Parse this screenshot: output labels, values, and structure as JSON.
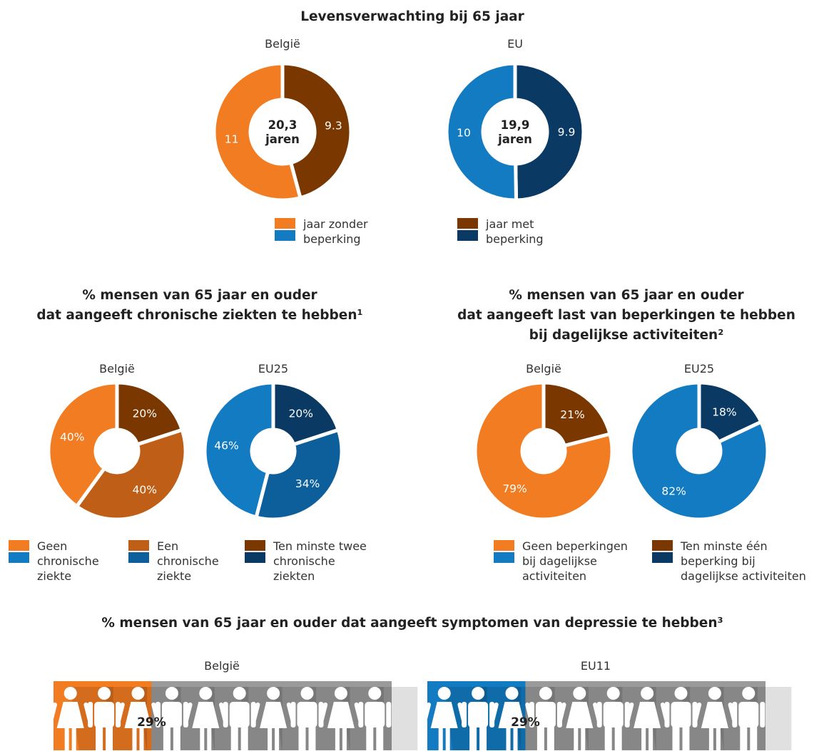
{
  "chart_data": [
    {
      "type": "pie",
      "title": "Levensverwachting bij 65 jaar",
      "charts": [
        {
          "subtitle": "België",
          "center": [
            "20,3",
            "jaren"
          ],
          "slices": [
            {
              "category": "jaar met beperking",
              "value": 9.3,
              "label": "9.3",
              "color": "#7a3800"
            },
            {
              "category": "jaar zonder beperking",
              "value": 11,
              "label": "11",
              "color": "#f27c21"
            }
          ]
        },
        {
          "subtitle": "EU",
          "center": [
            "19,9",
            "jaren"
          ],
          "slices": [
            {
              "category": "jaar met beperking",
              "value": 9.9,
              "label": "9.9",
              "color": "#0a3a63"
            },
            {
              "category": "jaar zonder beperking",
              "value": 10,
              "label": "10",
              "color": "#137bc1"
            }
          ]
        }
      ],
      "legend": [
        {
          "label": "jaar zonder beperking",
          "colors": [
            "#f27c21",
            "#137bc1"
          ]
        },
        {
          "label": "jaar met beperking",
          "colors": [
            "#7a3800",
            "#0a3a63"
          ]
        }
      ]
    },
    {
      "type": "pie",
      "title": "% mensen van 65 jaar en ouder dat aangeeft chronische ziekten te hebben¹",
      "charts": [
        {
          "subtitle": "België",
          "slices": [
            {
              "category": "Ten minste twee chronische ziekten",
              "value": 20,
              "label": "20%",
              "color": "#7a3800"
            },
            {
              "category": "Een chronische ziekte",
              "value": 40,
              "label": "40%",
              "color": "#bf5f17"
            },
            {
              "category": "Geen chronische ziekte",
              "value": 40,
              "label": "40%",
              "color": "#f27c21"
            }
          ]
        },
        {
          "subtitle": "EU25",
          "slices": [
            {
              "category": "Ten minste twee chronische ziekten",
              "value": 20,
              "label": "20%",
              "color": "#0a3a63"
            },
            {
              "category": "Een chronische ziekte",
              "value": 34,
              "label": "34%",
              "color": "#0c5f9a"
            },
            {
              "category": "Geen chronische ziekte",
              "value": 46,
              "label": "46%",
              "color": "#137bc1"
            }
          ]
        }
      ],
      "legend": [
        {
          "label": "Geen chronische ziekte",
          "colors": [
            "#f27c21",
            "#137bc1"
          ]
        },
        {
          "label": "Een chronische ziekte",
          "colors": [
            "#bf5f17",
            "#0c5f9a"
          ]
        },
        {
          "label": "Ten minste twee chronische ziekten",
          "colors": [
            "#7a3800",
            "#0a3a63"
          ]
        }
      ]
    },
    {
      "type": "pie",
      "title": "% mensen van 65 jaar en ouder dat aangeeft last van beperkingen te hebben bij dagelijkse activiteiten²",
      "charts": [
        {
          "subtitle": "België",
          "slices": [
            {
              "category": "Ten minste één beperking bij dagelijkse activiteiten",
              "value": 21,
              "label": "21%",
              "color": "#7a3800"
            },
            {
              "category": "Geen beperkingen bij dagelijkse activiteiten",
              "value": 79,
              "label": "79%",
              "color": "#f27c21"
            }
          ]
        },
        {
          "subtitle": "EU25",
          "slices": [
            {
              "category": "Ten minste één beperking bij dagelijkse activiteiten",
              "value": 18,
              "label": "18%",
              "color": "#0a3a63"
            },
            {
              "category": "Geen beperkingen bij dagelijkse activiteiten",
              "value": 82,
              "label": "82%",
              "color": "#137bc1"
            }
          ]
        }
      ],
      "legend": [
        {
          "label": "Geen beperkingen bij dagelijkse activiteiten",
          "colors": [
            "#f27c21",
            "#137bc1"
          ]
        },
        {
          "label": "Ten minste één beperking bij dagelijkse activiteiten",
          "colors": [
            "#7a3800",
            "#0a3a63"
          ]
        }
      ]
    },
    {
      "type": "bar",
      "title": "% mensen van 65 jaar en ouder dat aangeeft symptomen van depressie te hebben³",
      "series": [
        {
          "subtitle": "België",
          "value": 29,
          "label": "29%",
          "color": "#f27c21"
        },
        {
          "subtitle": "EU11",
          "value": 29,
          "label": "29%",
          "color": "#137bc1"
        }
      ]
    }
  ],
  "colors": {
    "grey": "#9a9a9a"
  }
}
